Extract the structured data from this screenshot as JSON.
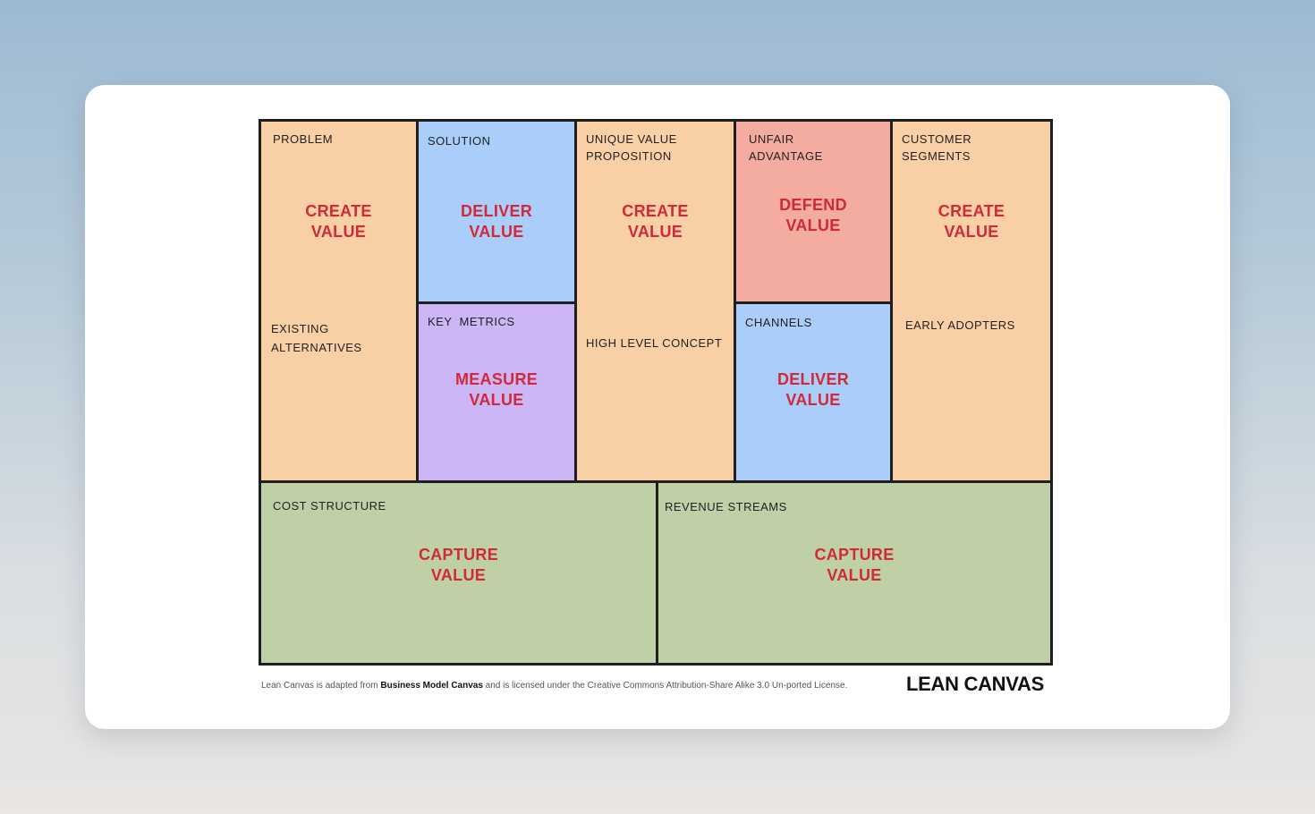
{
  "canvas": {
    "problem": {
      "label": "PROBLEM",
      "value": "CREATE\nVALUE",
      "sub_label": "EXISTING\nALTERNATIVES"
    },
    "solution": {
      "label": "SOLUTION",
      "value": "DELIVER\nVALUE"
    },
    "key_metrics": {
      "label": "KEY  METRICS",
      "value": "MEASURE\nVALUE"
    },
    "uvp": {
      "label": "UNIQUE VALUE\nPROPOSITION",
      "value": "CREATE\nVALUE",
      "sub_label": "HIGH LEVEL CONCEPT"
    },
    "unfair_advantage": {
      "label": "UNFAIR\nADVANTAGE",
      "value": "DEFEND\nVALUE"
    },
    "channels": {
      "label": "CHANNELS",
      "value": "DELIVER\nVALUE"
    },
    "customer_segments": {
      "label": "CUSTOMER\nSEGMENTS",
      "value": "CREATE\nVALUE",
      "sub_label": "EARLY ADOPTERS"
    },
    "cost_structure": {
      "label": "COST STRUCTURE",
      "value": "CAPTURE\nVALUE"
    },
    "revenue_streams": {
      "label": "REVENUE STREAMS",
      "value": "CAPTURE\nVALUE"
    }
  },
  "footer": {
    "note_prefix": "Lean Canvas is adapted from ",
    "note_link": "Business Model Canvas",
    "note_suffix": " and is licensed under the Creative Commons Attribution-Share Alike 3.0 Un-ported License.",
    "brand": "LEAN CANVAS"
  },
  "colors": {
    "create": "#f9cfa6",
    "deliver": "#abcdf9",
    "measure": "#cdb6f6",
    "defend": "#f4aca0",
    "capture": "#bfd0a7",
    "value_text": "#cf2a39"
  }
}
